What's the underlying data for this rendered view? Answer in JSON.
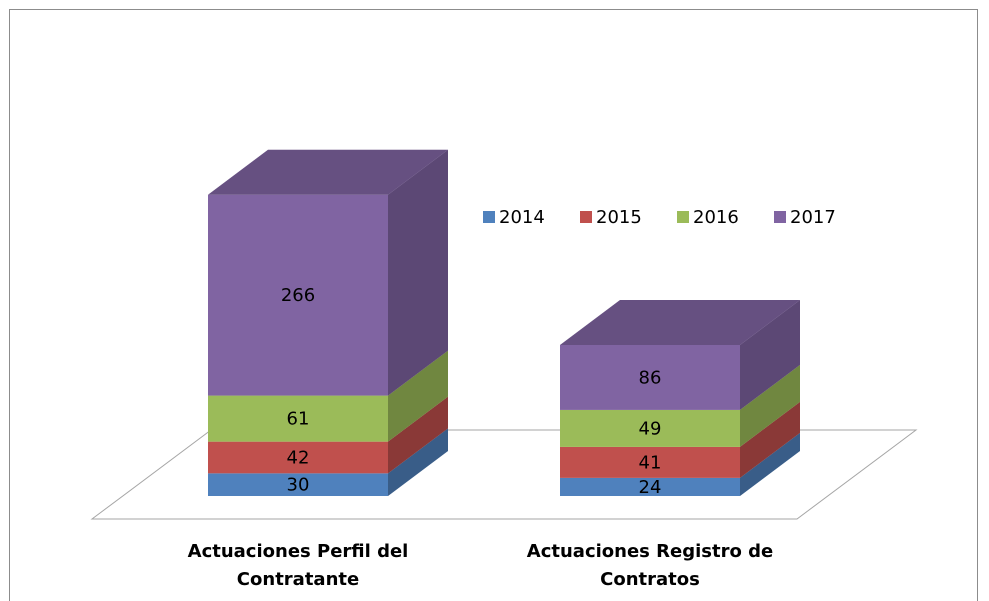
{
  "chart_data": {
    "type": "bar3d_stacked",
    "categories": [
      "Actuaciones Perfil del Contratante",
      "Actuaciones Registro de Contratos"
    ],
    "series": [
      {
        "name": "2014",
        "color": "#4f81bd",
        "values": [
          30,
          24
        ]
      },
      {
        "name": "2015",
        "color": "#c0504d",
        "values": [
          42,
          41
        ]
      },
      {
        "name": "2016",
        "color": "#9bbb59",
        "values": [
          61,
          49
        ]
      },
      {
        "name": "2017",
        "color": "#8064a2",
        "values": [
          266,
          86
        ]
      }
    ],
    "legend": "top-right"
  }
}
